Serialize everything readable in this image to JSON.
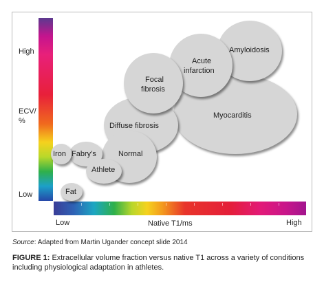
{
  "diagram": {
    "y_axis": {
      "title_line1": "ECV/",
      "title_line2": "%",
      "high": "High",
      "low": "Low"
    },
    "x_axis": {
      "title": "Native T1/ms",
      "low": "Low",
      "high": "High"
    },
    "bubbles": {
      "amyloidosis": "Amyloidosis",
      "acute_infarction_line1": "Acute",
      "acute_infarction_line2": "infarction",
      "focal_fibrosis_line1": "Focal",
      "focal_fibrosis_line2": "fibrosis",
      "myocarditis": "Myocarditis",
      "diffuse_fibrosis": "Diffuse fibrosis",
      "normal": "Normal",
      "iron": "Iron",
      "fabrys": "Fabry’s",
      "athlete": "Athlete",
      "fat": "Fat"
    },
    "colors": {
      "bubble": "#d6d6d6",
      "frame_border": "#b9b9b9"
    }
  },
  "source": {
    "label": "Source",
    "text": ": Adapted from Martin Ugander concept slide 2014"
  },
  "caption": {
    "lead": "FIGURE 1:",
    "text": " Extracellular volume fraction versus native T1 across a variety of conditions including physiological adaptation in athletes."
  }
}
